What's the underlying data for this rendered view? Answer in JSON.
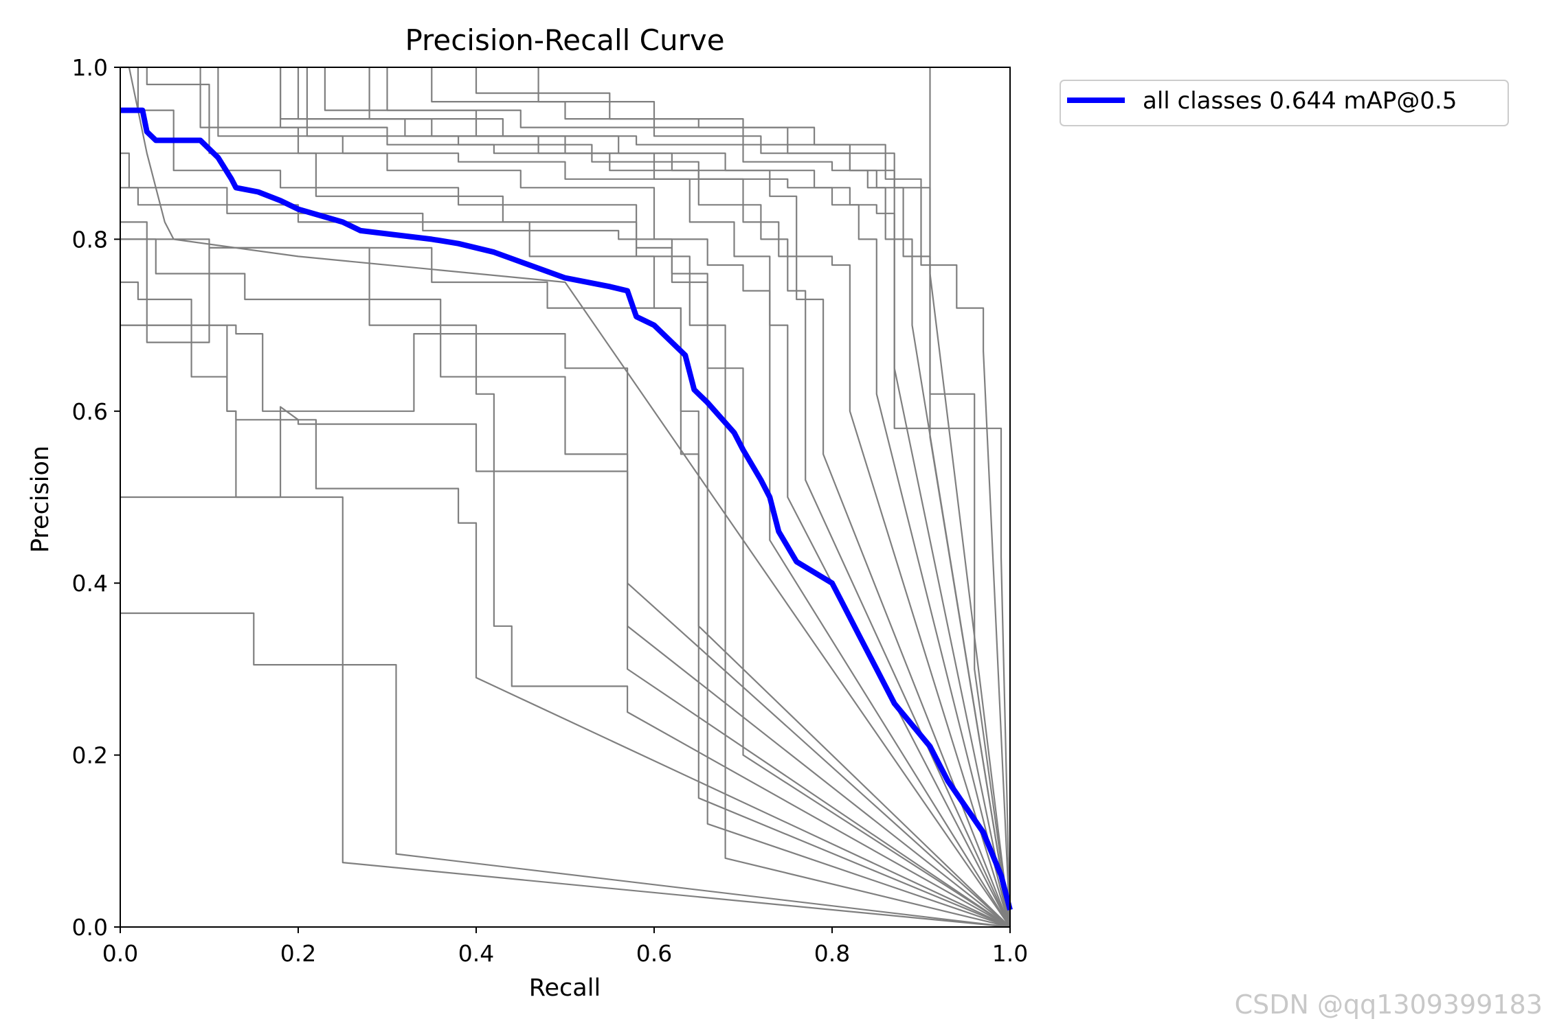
{
  "chart_data": {
    "type": "line",
    "title": "Precision-Recall Curve",
    "xlabel": "Recall",
    "ylabel": "Precision",
    "xlim": [
      0,
      1
    ],
    "ylim": [
      0,
      1
    ],
    "xticks": [
      "0.0",
      "0.2",
      "0.4",
      "0.6",
      "0.8",
      "1.0"
    ],
    "yticks": [
      "0.0",
      "0.2",
      "0.4",
      "0.6",
      "0.8",
      "1.0"
    ],
    "legend": {
      "position": "outside-top-right",
      "entries": [
        "all classes 0.644 mAP@0.5"
      ]
    },
    "series": [
      {
        "name": "all classes 0.644 mAP@0.5",
        "color": "#0000ff",
        "x": [
          0,
          0.025,
          0.03,
          0.04,
          0.09,
          0.11,
          0.125,
          0.13,
          0.155,
          0.18,
          0.2,
          0.25,
          0.27,
          0.35,
          0.38,
          0.42,
          0.46,
          0.5,
          0.55,
          0.57,
          0.58,
          0.6,
          0.62,
          0.635,
          0.645,
          0.66,
          0.69,
          0.7,
          0.72,
          0.73,
          0.74,
          0.76,
          0.8,
          0.81,
          0.83,
          0.85,
          0.87,
          0.91,
          0.93,
          0.97,
          0.99,
          1.0
        ],
        "y": [
          0.95,
          0.95,
          0.925,
          0.915,
          0.915,
          0.895,
          0.87,
          0.86,
          0.855,
          0.845,
          0.835,
          0.82,
          0.81,
          0.8,
          0.795,
          0.785,
          0.77,
          0.755,
          0.745,
          0.74,
          0.71,
          0.7,
          0.68,
          0.665,
          0.625,
          0.61,
          0.575,
          0.555,
          0.52,
          0.5,
          0.46,
          0.425,
          0.4,
          0.38,
          0.34,
          0.3,
          0.26,
          0.21,
          0.17,
          0.11,
          0.06,
          0.02
        ]
      }
    ],
    "class_curves": [
      {
        "x": [
          0,
          0.01,
          0.02,
          0.03,
          0.035,
          0.04,
          0.05,
          0.06,
          0.2,
          0.5,
          1
        ],
        "y": [
          1,
          1,
          0.95,
          0.9,
          0.88,
          0.86,
          0.82,
          0.8,
          0.78,
          0.75,
          0
        ]
      },
      {
        "x": [
          0,
          0.15,
          0.15,
          0.31,
          0.31,
          0.31,
          1
        ],
        "y": [
          0.365,
          0.365,
          0.305,
          0.305,
          0.26,
          0.085,
          0
        ]
      },
      {
        "x": [
          0,
          0.25,
          0.25,
          0.25,
          1
        ],
        "y": [
          0.5,
          0.5,
          0.075,
          0.075,
          0
        ]
      },
      {
        "x": [
          0,
          0.12,
          0.12,
          0.13,
          0.13,
          0.18,
          0.18,
          0.2,
          0.2,
          0.4,
          0.4,
          0.57,
          0.57,
          1
        ],
        "y": [
          0.7,
          0.7,
          0.6,
          0.6,
          0.5,
          0.5,
          0.605,
          0.59,
          0.585,
          0.585,
          0.53,
          0.53,
          0.35,
          0
        ]
      },
      {
        "x": [
          0,
          0.13,
          0.13,
          0.16,
          0.16,
          0.33,
          0.33,
          0.5,
          0.5,
          0.57,
          0.57,
          0.57,
          1
        ],
        "y": [
          0.7,
          0.7,
          0.69,
          0.69,
          0.6,
          0.6,
          0.69,
          0.69,
          0.65,
          0.65,
          0.4,
          0.4,
          0
        ]
      },
      {
        "x": [
          0,
          0.02,
          0.02,
          0.08,
          0.08,
          0.12,
          0.12,
          0.13,
          0.13,
          0.22,
          0.22,
          0.38,
          0.38,
          0.4,
          0.4,
          1
        ],
        "y": [
          0.75,
          0.75,
          0.73,
          0.73,
          0.64,
          0.64,
          0.6,
          0.6,
          0.59,
          0.59,
          0.51,
          0.51,
          0.47,
          0.47,
          0.29,
          0
        ]
      },
      {
        "x": [
          0,
          0.04,
          0.04,
          0.14,
          0.14,
          0.36,
          0.36,
          0.5,
          0.5,
          0.57,
          0.57,
          1
        ],
        "y": [
          0.8,
          0.8,
          0.76,
          0.76,
          0.73,
          0.73,
          0.64,
          0.64,
          0.55,
          0.55,
          0.3,
          0
        ]
      },
      {
        "x": [
          0,
          0.1,
          0.1,
          0.28,
          0.28,
          0.4,
          0.4,
          0.42,
          0.42,
          0.44,
          0.44,
          0.57,
          0.57,
          1
        ],
        "y": [
          0.8,
          0.8,
          0.79,
          0.79,
          0.7,
          0.7,
          0.62,
          0.62,
          0.35,
          0.35,
          0.28,
          0.28,
          0.25,
          0
        ]
      },
      {
        "x": [
          0,
          0.03,
          0.03,
          0.1,
          0.1,
          0.35,
          0.35,
          0.48,
          0.48,
          0.63,
          0.63,
          0.65,
          0.65,
          1
        ],
        "y": [
          0.82,
          0.82,
          0.68,
          0.68,
          0.79,
          0.79,
          0.75,
          0.75,
          0.72,
          0.72,
          0.6,
          0.6,
          0.35,
          0
        ]
      },
      {
        "x": [
          0,
          0.02,
          0.02,
          0.2,
          0.2,
          0.46,
          0.46,
          0.6,
          0.6,
          0.63,
          0.63,
          0.65,
          0.65,
          1
        ],
        "y": [
          0.86,
          0.86,
          0.84,
          0.84,
          0.82,
          0.82,
          0.78,
          0.78,
          0.72,
          0.72,
          0.55,
          0.55,
          0.15,
          0
        ]
      },
      {
        "x": [
          0,
          0.01,
          0.01,
          0.12,
          0.12,
          0.34,
          0.34,
          0.56,
          0.56,
          0.62,
          0.62,
          0.66,
          0.66,
          1
        ],
        "y": [
          0.9,
          0.9,
          0.86,
          0.86,
          0.83,
          0.83,
          0.81,
          0.81,
          0.8,
          0.8,
          0.76,
          0.76,
          0.12,
          0
        ]
      },
      {
        "x": [
          0.02,
          0.02,
          0.06,
          0.06,
          0.18,
          0.18,
          0.38,
          0.38,
          0.58,
          0.58,
          0.64,
          0.64,
          0.68,
          0.68,
          1
        ],
        "y": [
          1,
          0.95,
          0.95,
          0.88,
          0.88,
          0.86,
          0.86,
          0.84,
          0.84,
          0.78,
          0.78,
          0.7,
          0.7,
          0.08,
          0
        ]
      },
      {
        "x": [
          0.03,
          0.03,
          0.1,
          0.1,
          0.22,
          0.22,
          0.43,
          0.43,
          0.58,
          0.58,
          0.62,
          0.62,
          0.66,
          0.66,
          0.7,
          0.7,
          1
        ],
        "y": [
          1,
          0.98,
          0.98,
          0.9,
          0.9,
          0.85,
          0.85,
          0.82,
          0.82,
          0.79,
          0.79,
          0.75,
          0.75,
          0.65,
          0.65,
          0.2,
          0
        ]
      },
      {
        "x": [
          0.09,
          0.09,
          0.2,
          0.2,
          0.3,
          0.3,
          0.45,
          0.45,
          0.6,
          0.6,
          0.66,
          0.66,
          0.7,
          0.7,
          0.73,
          0.73,
          1
        ],
        "y": [
          1,
          0.93,
          0.93,
          0.9,
          0.9,
          0.88,
          0.88,
          0.86,
          0.86,
          0.8,
          0.8,
          0.77,
          0.77,
          0.74,
          0.74,
          0.45,
          0
        ]
      },
      {
        "x": [
          0.11,
          0.11,
          0.25,
          0.25,
          0.38,
          0.38,
          0.5,
          0.5,
          0.64,
          0.64,
          0.69,
          0.69,
          0.73,
          0.73,
          0.75,
          0.75,
          1
        ],
        "y": [
          1,
          0.92,
          0.92,
          0.9,
          0.9,
          0.89,
          0.89,
          0.87,
          0.87,
          0.82,
          0.82,
          0.78,
          0.78,
          0.7,
          0.7,
          0.5,
          0
        ]
      },
      {
        "x": [
          0.18,
          0.18,
          0.3,
          0.3,
          0.42,
          0.42,
          0.55,
          0.55,
          0.65,
          0.65,
          0.72,
          0.72,
          0.75,
          0.75,
          0.77,
          0.77,
          1
        ],
        "y": [
          1,
          0.93,
          0.93,
          0.91,
          0.91,
          0.9,
          0.9,
          0.88,
          0.88,
          0.84,
          0.84,
          0.8,
          0.8,
          0.74,
          0.74,
          0.52,
          0
        ]
      },
      {
        "x": [
          0.18,
          0.18,
          0.32,
          0.32,
          0.47,
          0.47,
          0.6,
          0.6,
          0.7,
          0.7,
          0.74,
          0.74,
          0.76,
          0.76,
          0.79,
          0.79,
          1
        ],
        "y": [
          1,
          0.94,
          0.94,
          0.92,
          0.92,
          0.9,
          0.9,
          0.87,
          0.87,
          0.82,
          0.82,
          0.78,
          0.78,
          0.73,
          0.73,
          0.55,
          0
        ]
      },
      {
        "x": [
          0.2,
          0.2,
          0.35,
          0.35,
          0.5,
          0.5,
          0.62,
          0.62,
          0.73,
          0.73,
          0.76,
          0.76,
          0.8,
          0.8,
          0.82,
          0.82,
          1
        ],
        "y": [
          1,
          0.94,
          0.94,
          0.92,
          0.92,
          0.9,
          0.9,
          0.88,
          0.88,
          0.85,
          0.85,
          0.78,
          0.78,
          0.77,
          0.77,
          0.6,
          0
        ]
      },
      {
        "x": [
          0.21,
          0.21,
          0.38,
          0.38,
          0.53,
          0.53,
          0.65,
          0.65,
          0.75,
          0.75,
          0.8,
          0.8,
          0.83,
          0.83,
          0.85,
          0.85,
          1
        ],
        "y": [
          1,
          0.92,
          0.92,
          0.91,
          0.91,
          0.89,
          0.89,
          0.87,
          0.87,
          0.86,
          0.86,
          0.84,
          0.84,
          0.8,
          0.8,
          0.62,
          0
        ]
      },
      {
        "x": [
          0.23,
          0.23,
          0.4,
          0.4,
          0.56,
          0.56,
          0.68,
          0.68,
          0.78,
          0.78,
          0.82,
          0.82,
          0.85,
          0.85,
          0.87,
          0.87,
          1
        ],
        "y": [
          1,
          0.95,
          0.95,
          0.92,
          0.92,
          0.9,
          0.9,
          0.88,
          0.88,
          0.86,
          0.86,
          0.84,
          0.84,
          0.83,
          0.83,
          0.65,
          0
        ]
      },
      {
        "x": [
          0.28,
          0.28,
          0.43,
          0.43,
          0.58,
          0.58,
          0.7,
          0.7,
          0.8,
          0.8,
          0.84,
          0.84,
          0.86,
          0.86,
          0.89,
          0.89,
          1
        ],
        "y": [
          1,
          0.94,
          0.94,
          0.92,
          0.92,
          0.91,
          0.91,
          0.89,
          0.89,
          0.88,
          0.88,
          0.86,
          0.86,
          0.8,
          0.8,
          0.7,
          0
        ]
      },
      {
        "x": [
          0.3,
          0.3,
          0.45,
          0.45,
          0.6,
          0.6,
          0.72,
          0.72,
          0.82,
          0.82,
          0.85,
          0.85,
          0.88,
          0.88,
          0.91,
          0.91,
          1
        ],
        "y": [
          1,
          0.95,
          0.95,
          0.93,
          0.93,
          0.92,
          0.92,
          0.9,
          0.9,
          0.88,
          0.88,
          0.86,
          0.86,
          0.78,
          0.78,
          0.76,
          0
        ]
      },
      {
        "x": [
          0.35,
          0.35,
          0.5,
          0.5,
          0.65,
          0.65,
          0.78,
          0.78,
          0.86,
          0.86,
          0.9,
          0.9,
          0.94,
          0.94,
          0.97,
          0.97,
          1
        ],
        "y": [
          1,
          0.96,
          0.96,
          0.94,
          0.94,
          0.93,
          0.93,
          0.91,
          0.91,
          0.87,
          0.87,
          0.77,
          0.77,
          0.72,
          0.72,
          0.67,
          0
        ]
      },
      {
        "x": [
          0.4,
          0.4,
          0.55,
          0.55,
          0.7,
          0.7,
          0.82,
          0.82,
          0.87,
          0.87,
          0.91,
          0.91,
          0.99,
          0.99,
          1
        ],
        "y": [
          1,
          0.97,
          0.97,
          0.94,
          0.94,
          0.91,
          0.91,
          0.88,
          0.88,
          0.58,
          0.58,
          0.58,
          0.58,
          0.43,
          0
        ]
      },
      {
        "x": [
          0.47,
          0.47,
          0.6,
          0.6,
          0.75,
          0.75,
          0.87,
          0.87,
          0.91,
          0.91,
          0.96,
          0.96,
          1
        ],
        "y": [
          1,
          0.96,
          0.96,
          0.93,
          0.93,
          0.9,
          0.9,
          0.86,
          0.86,
          0.62,
          0.62,
          0.3,
          0
        ]
      },
      {
        "x": [
          0.91,
          0.91,
          0.91,
          1
        ],
        "y": [
          1,
          0.66,
          0.57,
          0
        ]
      }
    ]
  },
  "watermark": "CSDN @qq1309399183",
  "colors": {
    "class_curve": "#7f7f7f",
    "all_classes": "#0000ff"
  }
}
